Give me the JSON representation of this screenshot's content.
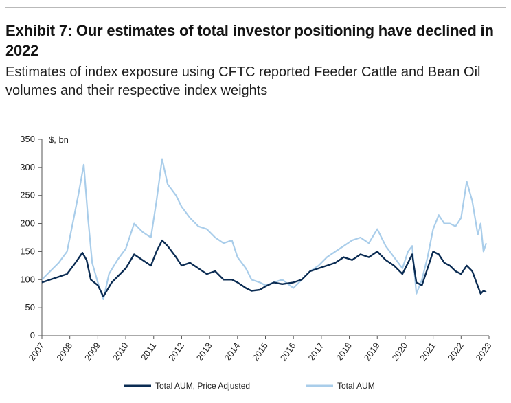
{
  "header": {
    "title": "Exhibit 7: Our estimates of total investor positioning have declined in 2022",
    "subtitle": "Estimates of index exposure using CFTC reported Feeder Cattle and Bean Oil volumes and their respective index weights"
  },
  "chart_data": {
    "type": "line",
    "title": "Exhibit 7: Our estimates of total investor positioning have declined in 2022",
    "subtitle": "Estimates of index exposure using CFTC reported Feeder Cattle and Bean Oil volumes and their respective index weights",
    "ylabel": "$, bn",
    "xlabel": "",
    "ylim": [
      0,
      350
    ],
    "xlim": [
      2007,
      2023
    ],
    "y_ticks": [
      "0",
      "50",
      "100",
      "150",
      "200",
      "250",
      "300",
      "350"
    ],
    "x_ticks": [
      "2007",
      "2008",
      "2009",
      "2010",
      "2011",
      "2012",
      "2013",
      "2014",
      "2015",
      "2016",
      "2017",
      "2018",
      "2019",
      "2020",
      "2021",
      "2022",
      "2023"
    ],
    "grid": false,
    "legend_position": "bottom",
    "series": [
      {
        "name": "Total AUM, Price Adjusted",
        "color": "#0b2c53",
        "x": [
          2007.0,
          2007.3,
          2007.6,
          2007.9,
          2008.2,
          2008.45,
          2008.6,
          2008.75,
          2009.0,
          2009.2,
          2009.5,
          2009.8,
          2010.0,
          2010.3,
          2010.6,
          2010.9,
          2011.1,
          2011.3,
          2011.5,
          2011.8,
          2012.0,
          2012.3,
          2012.6,
          2012.9,
          2013.2,
          2013.5,
          2013.8,
          2014.0,
          2014.3,
          2014.5,
          2014.8,
          2015.0,
          2015.3,
          2015.6,
          2016.0,
          2016.3,
          2016.6,
          2016.9,
          2017.2,
          2017.5,
          2017.8,
          2018.1,
          2018.4,
          2018.7,
          2019.0,
          2019.3,
          2019.6,
          2019.9,
          2020.1,
          2020.25,
          2020.4,
          2020.6,
          2020.8,
          2021.0,
          2021.2,
          2021.4,
          2021.6,
          2021.8,
          2022.0,
          2022.2,
          2022.4,
          2022.55,
          2022.7,
          2022.8,
          2022.9
        ],
        "y": [
          95,
          100,
          105,
          110,
          130,
          148,
          135,
          100,
          90,
          70,
          95,
          110,
          120,
          145,
          135,
          125,
          150,
          170,
          160,
          140,
          125,
          130,
          120,
          110,
          115,
          100,
          100,
          95,
          85,
          80,
          82,
          88,
          95,
          92,
          95,
          100,
          115,
          120,
          125,
          130,
          140,
          135,
          145,
          140,
          150,
          135,
          125,
          110,
          130,
          145,
          95,
          90,
          120,
          150,
          145,
          130,
          125,
          115,
          110,
          125,
          115,
          95,
          75,
          80,
          78
        ]
      },
      {
        "name": "Total AUM",
        "color": "#a9cdea",
        "x": [
          2007.0,
          2007.3,
          2007.6,
          2007.9,
          2008.1,
          2008.3,
          2008.5,
          2008.65,
          2008.8,
          2009.0,
          2009.2,
          2009.4,
          2009.7,
          2010.0,
          2010.3,
          2010.6,
          2010.9,
          2011.1,
          2011.3,
          2011.5,
          2011.8,
          2012.0,
          2012.3,
          2012.6,
          2012.9,
          2013.2,
          2013.5,
          2013.8,
          2014.0,
          2014.3,
          2014.5,
          2014.8,
          2015.0,
          2015.3,
          2015.6,
          2016.0,
          2016.3,
          2016.6,
          2016.9,
          2017.2,
          2017.5,
          2017.8,
          2018.1,
          2018.4,
          2018.7,
          2019.0,
          2019.3,
          2019.6,
          2019.9,
          2020.1,
          2020.25,
          2020.4,
          2020.6,
          2020.8,
          2021.0,
          2021.2,
          2021.4,
          2021.6,
          2021.8,
          2022.0,
          2022.2,
          2022.4,
          2022.6,
          2022.7,
          2022.8,
          2022.9
        ],
        "y": [
          100,
          115,
          130,
          150,
          200,
          250,
          305,
          210,
          130,
          95,
          65,
          110,
          135,
          155,
          200,
          185,
          175,
          240,
          315,
          270,
          250,
          230,
          210,
          195,
          190,
          175,
          165,
          170,
          140,
          120,
          100,
          95,
          90,
          95,
          100,
          85,
          100,
          115,
          125,
          140,
          150,
          160,
          170,
          175,
          165,
          190,
          160,
          140,
          120,
          150,
          160,
          75,
          100,
          140,
          190,
          215,
          200,
          200,
          195,
          210,
          275,
          240,
          180,
          200,
          150,
          165
        ]
      }
    ]
  }
}
